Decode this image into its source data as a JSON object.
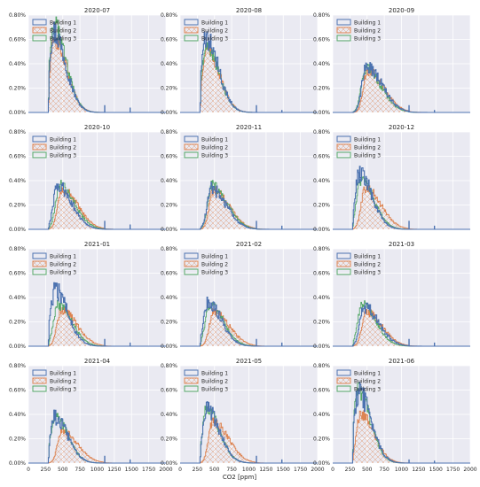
{
  "chart_data": {
    "type": "histogram-small-multiples",
    "xlabel": "CO2 [ppm]",
    "xlim": [
      0,
      2000
    ],
    "xticks": [
      "0",
      "250",
      "500",
      "750",
      "1000",
      "1250",
      "1500",
      "1750",
      "2000"
    ],
    "ylim": [
      0,
      0.8
    ],
    "yticks": [
      "0.00%",
      "0.20%",
      "0.40%",
      "0.60%",
      "0.80%"
    ],
    "grid": true,
    "legend_placement": "top-left",
    "series_names": [
      "Building 1",
      "Building 2",
      "Building 3"
    ],
    "colors": {
      "Building 1": "#4c72b0",
      "Building 2": "#dd8452",
      "Building 3": "#55a868",
      "plot_bg": "#eaeaf2",
      "grid": "#ffffff"
    },
    "panels": [
      {
        "title": "2020-07",
        "peaks": [
          0.66,
          0.6,
          0.72
        ],
        "modes": [
          360,
          370,
          360
        ],
        "spikes": [
          [
            1110,
            0.06
          ],
          [
            1480,
            0.04
          ]
        ]
      },
      {
        "title": "2020-08",
        "peaks": [
          0.6,
          0.52,
          0.56
        ],
        "modes": [
          370,
          380,
          370
        ],
        "spikes": [
          [
            1110,
            0.06
          ],
          [
            1480,
            0.02
          ]
        ]
      },
      {
        "title": "2020-09",
        "peaks": [
          0.38,
          0.34,
          0.36
        ],
        "modes": [
          480,
          500,
          470
        ],
        "spikes": [
          [
            1110,
            0.06
          ],
          [
            1480,
            0.02
          ]
        ]
      },
      {
        "title": "2020-10",
        "peaks": [
          0.36,
          0.33,
          0.36
        ],
        "modes": [
          420,
          480,
          450
        ],
        "spikes": [
          [
            1110,
            0.07
          ],
          [
            1480,
            0.04
          ]
        ]
      },
      {
        "title": "2020-11",
        "peaks": [
          0.33,
          0.32,
          0.36
        ],
        "modes": [
          450,
          480,
          460
        ],
        "spikes": [
          [
            1110,
            0.07
          ],
          [
            1480,
            0.03
          ]
        ]
      },
      {
        "title": "2020-12",
        "peaks": [
          0.46,
          0.34,
          0.4
        ],
        "modes": [
          380,
          470,
          400
        ],
        "spikes": [
          [
            1110,
            0.07
          ],
          [
            1480,
            0.03
          ]
        ]
      },
      {
        "title": "2021-01",
        "peaks": [
          0.46,
          0.3,
          0.34
        ],
        "modes": [
          380,
          470,
          420
        ],
        "spikes": [
          [
            1110,
            0.06
          ],
          [
            1480,
            0.03
          ]
        ]
      },
      {
        "title": "2021-02",
        "peaks": [
          0.36,
          0.28,
          0.34
        ],
        "modes": [
          400,
          480,
          420
        ],
        "spikes": [
          [
            1110,
            0.06
          ],
          [
            1480,
            0.03
          ]
        ]
      },
      {
        "title": "2021-03",
        "peaks": [
          0.32,
          0.28,
          0.34
        ],
        "modes": [
          450,
          480,
          420
        ],
        "spikes": [
          [
            1110,
            0.06
          ],
          [
            1480,
            0.03
          ]
        ]
      },
      {
        "title": "2021-04",
        "peaks": [
          0.38,
          0.26,
          0.38
        ],
        "modes": [
          380,
          480,
          380
        ],
        "spikes": [
          [
            1110,
            0.06
          ],
          [
            1480,
            0.03
          ]
        ]
      },
      {
        "title": "2021-05",
        "peaks": [
          0.44,
          0.34,
          0.44
        ],
        "modes": [
          380,
          470,
          380
        ],
        "spikes": [
          [
            1110,
            0.06
          ],
          [
            1480,
            0.03
          ]
        ]
      },
      {
        "title": "2021-06",
        "peaks": [
          0.58,
          0.4,
          0.6
        ],
        "modes": [
          370,
          400,
          360
        ],
        "spikes": [
          [
            1110,
            0.03
          ],
          [
            1480,
            0.02
          ]
        ]
      }
    ]
  }
}
